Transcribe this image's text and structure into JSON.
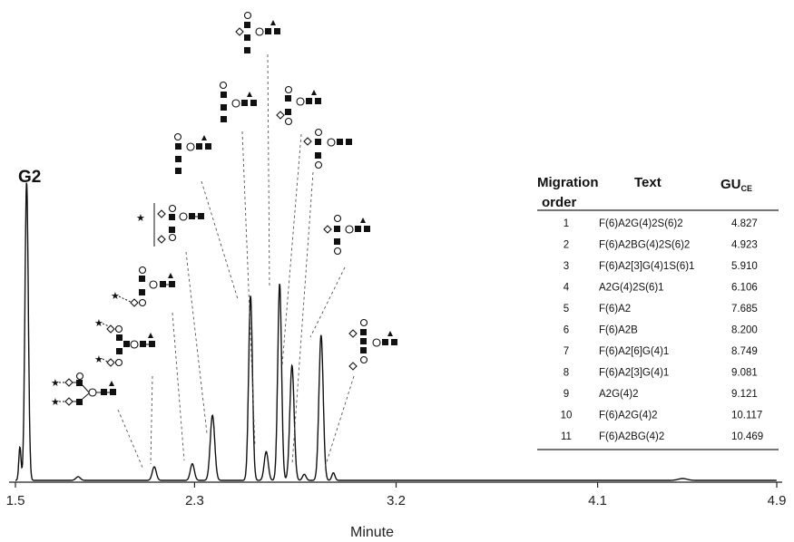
{
  "chart_data": {
    "type": "line",
    "xlabel": "Minute",
    "xlim": [
      1.5,
      4.9
    ],
    "xticks": [
      "1.5",
      "2.3",
      "3.2",
      "4.1",
      "4.9"
    ],
    "baseline_label": "G2",
    "peaks": [
      {
        "x": 1.55,
        "h": 0.985,
        "w": 0.0075
      },
      {
        "x": 1.52,
        "h": 0.11,
        "w": 0.005
      },
      {
        "x": 1.78,
        "h": 0.012,
        "w": 0.01
      },
      {
        "x": 2.12,
        "h": 0.045,
        "w": 0.009
      },
      {
        "x": 2.29,
        "h": 0.055,
        "w": 0.009
      },
      {
        "x": 2.38,
        "h": 0.215,
        "w": 0.01
      },
      {
        "x": 2.55,
        "h": 0.61,
        "w": 0.0085
      },
      {
        "x": 2.62,
        "h": 0.095,
        "w": 0.009
      },
      {
        "x": 2.68,
        "h": 0.65,
        "w": 0.0085
      },
      {
        "x": 2.735,
        "h": 0.38,
        "w": 0.0095
      },
      {
        "x": 2.79,
        "h": 0.02,
        "w": 0.008
      },
      {
        "x": 2.865,
        "h": 0.48,
        "w": 0.0095
      },
      {
        "x": 2.92,
        "h": 0.025,
        "w": 0.007
      },
      {
        "x": 4.48,
        "h": 0.006,
        "w": 0.02
      }
    ],
    "table": {
      "headers": [
        "Migration order",
        "Text",
        "GU"
      ],
      "gu_subscript": "CE",
      "rows": [
        [
          "1",
          "F(6)A2G(4)2S(6)2",
          "4.827"
        ],
        [
          "2",
          "F(6)A2BG(4)2S(6)2",
          "4.923"
        ],
        [
          "3",
          "F(6)A2[3]G(4)1S(6)1",
          "5.910"
        ],
        [
          "4",
          "A2G(4)2S(6)1",
          "6.106"
        ],
        [
          "5",
          "F(6)A2",
          "7.685"
        ],
        [
          "6",
          "F(6)A2B",
          "8.200"
        ],
        [
          "7",
          "F(6)A2[6]G(4)1",
          "8.749"
        ],
        [
          "8",
          "F(6)A2[3]G(4)1",
          "9.081"
        ],
        [
          "9",
          "A2G(4)2",
          "9.121"
        ],
        [
          "10",
          "F(6)A2G(4)2",
          "10.117"
        ],
        [
          "11",
          "F(6)A2BG(4)2",
          "10.469"
        ]
      ]
    }
  }
}
